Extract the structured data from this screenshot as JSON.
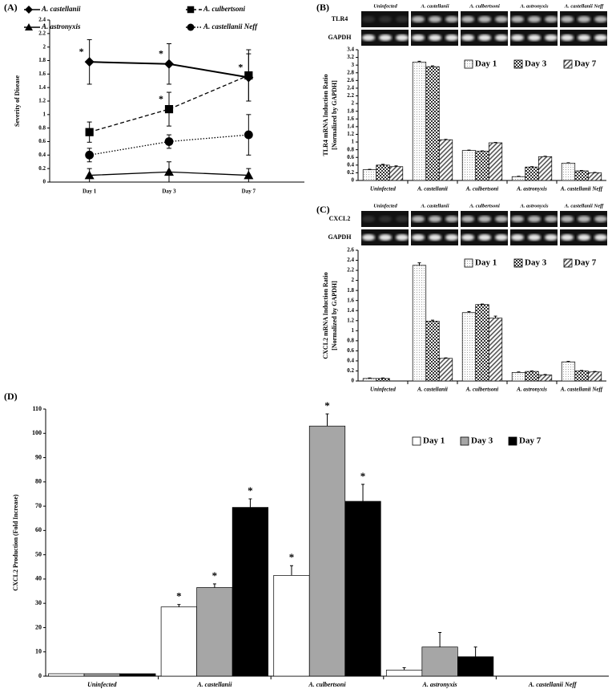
{
  "chart_data": [
    {
      "type": "line",
      "panel": "(A)",
      "ylabel": "Severity of Disease",
      "categories": [
        "Day 1",
        "Day 3",
        "Day 7"
      ],
      "ylim": [
        0,
        2.4
      ],
      "yticks": [
        0,
        0.2,
        0.4,
        0.6,
        0.8,
        1,
        1.2,
        1.4,
        1.6,
        1.8,
        2,
        2.2,
        2.4
      ],
      "series": [
        {
          "name": "A. castellanii",
          "color": "#000000",
          "marker": "diamond",
          "line_style": "solid",
          "values": [
            1.78,
            1.75,
            1.55
          ],
          "errors": [
            0.33,
            0.3,
            0.35
          ],
          "annotations": [
            "*",
            "*",
            "*"
          ]
        },
        {
          "name": "A. culbertsoni",
          "color": "#000000",
          "marker": "square",
          "line_style": "dashed",
          "values": [
            0.74,
            1.08,
            1.58
          ],
          "errors": [
            0.15,
            0.25,
            0.38
          ],
          "annotations": [
            null,
            "*",
            null
          ]
        },
        {
          "name": "A. astronyxis",
          "color": "#000000",
          "marker": "triangle",
          "line_style": "solid",
          "values": [
            0.1,
            0.15,
            0.1
          ],
          "errors": [
            0.1,
            0.15,
            0.1
          ],
          "annotations": [
            null,
            null,
            null
          ]
        },
        {
          "name": "A. castellanii Neff",
          "color": "#000000",
          "marker": "circle",
          "line_style": "dotted",
          "values": [
            0.4,
            0.6,
            0.7
          ],
          "errors": [
            0.1,
            0.1,
            0.3
          ],
          "annotations": [
            null,
            null,
            null
          ]
        }
      ]
    },
    {
      "type": "bar",
      "panel": "(B)",
      "ylabel": [
        "TLR4 mRNA Induction Ratio",
        "[Normalized by GAPDH]"
      ],
      "gel_rows": [
        "TLR4",
        "GAPDH"
      ],
      "categories": [
        "Uninfected",
        "A. castellanii",
        "A. culbertsoni",
        "A. astronyxis",
        "A. castellanii Neff"
      ],
      "ylim": [
        0,
        3.4
      ],
      "yticks": [
        0,
        0.2,
        0.4,
        0.6,
        0.8,
        1,
        1.2,
        1.4,
        1.6,
        1.8,
        2,
        2.2,
        2.4,
        2.6,
        2.8,
        3,
        3.2,
        3.4
      ],
      "series": [
        {
          "name": "Day 1",
          "color": "#f2f2f2",
          "pattern": "dots",
          "values": [
            0.28,
            3.08,
            0.78,
            0.1,
            0.45
          ],
          "errors": [
            0.01,
            0.02,
            0.01,
            0.01,
            0.01
          ]
        },
        {
          "name": "Day 3",
          "color": "#404040",
          "pattern": "checker",
          "values": [
            0.4,
            2.96,
            0.76,
            0.35,
            0.25
          ],
          "errors": [
            0.02,
            0.02,
            0.01,
            0.01,
            0.01
          ]
        },
        {
          "name": "Day 7",
          "color": "#595959",
          "pattern": "hatch",
          "values": [
            0.36,
            1.06,
            0.98,
            0.62,
            0.2
          ],
          "errors": [
            0.02,
            0.01,
            0.01,
            0.01,
            0.01
          ]
        }
      ]
    },
    {
      "type": "bar",
      "panel": "(C)",
      "ylabel": [
        "CXCL2  mRNA Induction Ratio",
        "[Normalized by GAPDH]"
      ],
      "gel_rows": [
        "CXCL2",
        "GAPDH"
      ],
      "categories": [
        "Uninfected",
        "A. castellanii",
        "A. culbertsoni",
        "A. astronyxis",
        "A. castellanii Neff"
      ],
      "ylim": [
        0,
        2.6
      ],
      "yticks": [
        0,
        0.2,
        0.4,
        0.6,
        0.8,
        1,
        1.2,
        1.4,
        1.6,
        1.8,
        2,
        2.2,
        2.4,
        2.6
      ],
      "series": [
        {
          "name": "Day 1",
          "color": "#f2f2f2",
          "pattern": "dots",
          "values": [
            0.05,
            2.3,
            1.36,
            0.17,
            0.38
          ],
          "errors": [
            0.01,
            0.05,
            0.02,
            0.01,
            0.01
          ]
        },
        {
          "name": "Day 3",
          "color": "#404040",
          "pattern": "checker",
          "values": [
            0.05,
            1.19,
            1.52,
            0.19,
            0.2
          ],
          "errors": [
            0.01,
            0.02,
            0.01,
            0.01,
            0.01
          ]
        },
        {
          "name": "Day 7",
          "color": "#595959",
          "pattern": "hatch",
          "values": [
            0,
            0.45,
            1.25,
            0.12,
            0.18
          ],
          "errors": [
            0,
            0.01,
            0.04,
            0.01,
            0.01
          ]
        }
      ]
    },
    {
      "type": "bar",
      "panel": "(D)",
      "ylabel": "CXCL2 Production (Fold Increase)",
      "categories": [
        "Uninfected",
        "A. castellanii",
        "A. culbertsoni",
        "A. astronyxis",
        "A. castellanii Neff"
      ],
      "ylim": [
        0,
        110
      ],
      "yticks": [
        0,
        10,
        20,
        30,
        40,
        50,
        60,
        70,
        80,
        90,
        100,
        110
      ],
      "series": [
        {
          "name": "Day 1",
          "color": "#ffffff",
          "values": [
            1,
            28.5,
            41.5,
            2.5,
            0
          ],
          "errors": [
            0,
            1,
            4,
            1,
            0
          ],
          "annotations": [
            null,
            "*",
            "*",
            null,
            null
          ]
        },
        {
          "name": "Day 3",
          "color": "#a6a6a6",
          "values": [
            1,
            36.5,
            103,
            12,
            0
          ],
          "errors": [
            0,
            1.5,
            5,
            6,
            0
          ],
          "annotations": [
            null,
            "*",
            "*",
            null,
            null
          ]
        },
        {
          "name": "Day 7",
          "color": "#000000",
          "values": [
            1,
            69.5,
            72,
            8,
            0
          ],
          "errors": [
            0,
            3.5,
            7,
            4,
            0
          ],
          "annotations": [
            null,
            "*",
            "*",
            null,
            null
          ]
        }
      ]
    }
  ]
}
